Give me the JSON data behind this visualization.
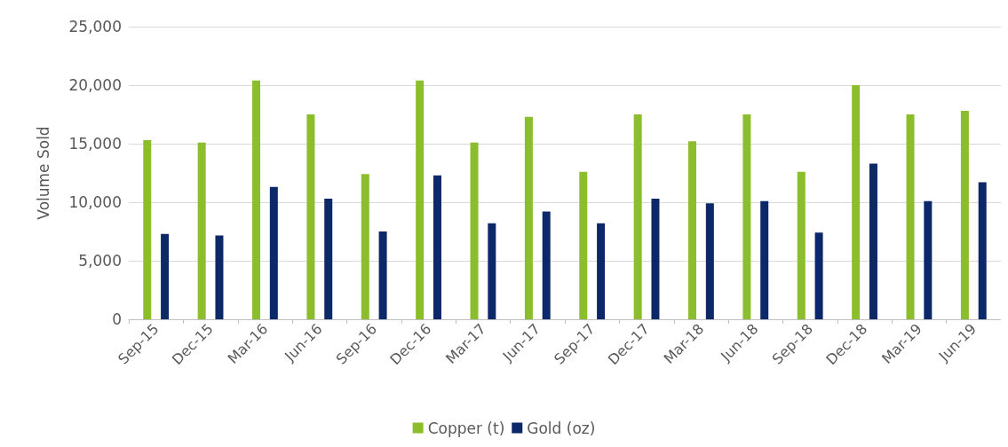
{
  "chart_data": {
    "type": "bar",
    "ylabel": "Volume Sold",
    "categories": [
      "Sep-15",
      "Dec-15",
      "Mar-16",
      "Jun-16",
      "Sep-16",
      "Dec-16",
      "Mar-17",
      "Jun-17",
      "Sep-17",
      "Dec-17",
      "Mar-18",
      "Jun-18",
      "Sep-18",
      "Dec-18",
      "Mar-19",
      "Jun-19"
    ],
    "series": [
      {
        "name": "Copper (t)",
        "color": "#8cbd2c",
        "values": [
          15300,
          15100,
          20400,
          17500,
          12400,
          20400,
          15100,
          17300,
          12600,
          17500,
          15200,
          17500,
          12600,
          20000,
          17500,
          17800
        ]
      },
      {
        "name": "Gold (oz)",
        "color": "#0c2868",
        "values": [
          7300,
          7150,
          11300,
          10300,
          7500,
          12300,
          8200,
          9200,
          8200,
          10300,
          9900,
          10100,
          7400,
          13300,
          10100,
          11700
        ]
      }
    ],
    "ylim": [
      0,
      25000
    ],
    "yticks": [
      0,
      {
        "value": 5000,
        "label": "5,000"
      },
      {
        "value": 10000,
        "label": "10,000"
      },
      {
        "value": 15000,
        "label": "15,000"
      },
      {
        "value": 20000,
        "label": "20,000"
      },
      {
        "value": 25000,
        "label": "25,000"
      }
    ],
    "grid": "y",
    "legend": "bottom"
  }
}
